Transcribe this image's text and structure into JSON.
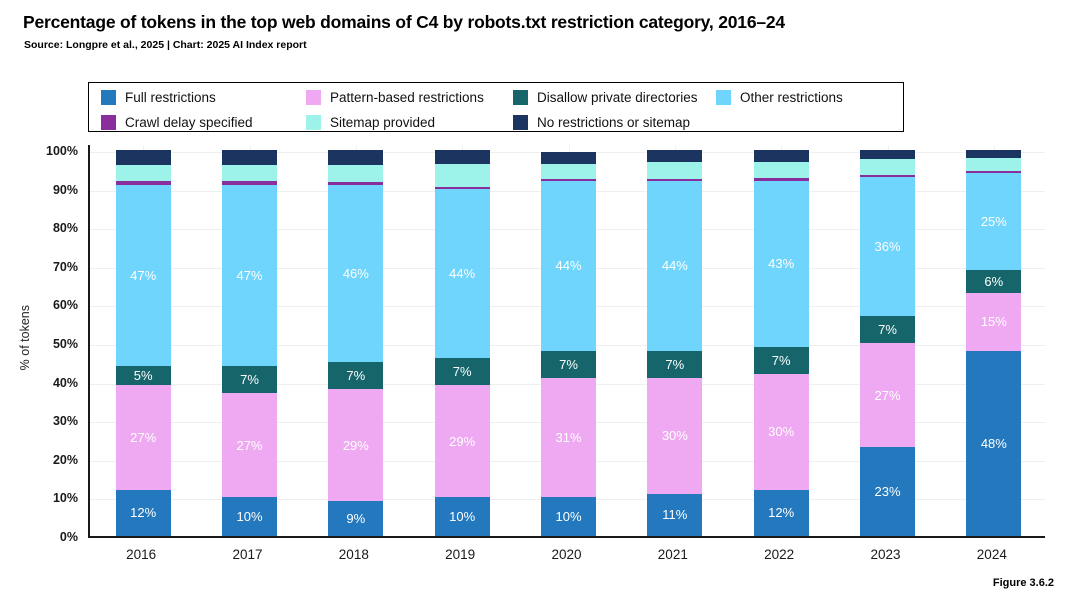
{
  "title": "Percentage of tokens in the top web domains of C4 by robots.txt restriction category, 2016–24",
  "source_line": "Source: Longpre et al., 2025 | Chart: 2025 AI Index report",
  "figure_label": "Figure 3.6.2",
  "legend": {
    "items": [
      {
        "label": "Full restrictions",
        "color": "#2378BE"
      },
      {
        "label": "Pattern-based restrictions",
        "color": "#EFA9F2"
      },
      {
        "label": "Disallow private directories",
        "color": "#16656A"
      },
      {
        "label": "Other restrictions",
        "color": "#6FD5FC"
      },
      {
        "label": "Crawl delay specified",
        "color": "#8A2E9E"
      },
      {
        "label": "Sitemap provided",
        "color": "#9DF2E9"
      },
      {
        "label": "No restrictions or sitemap",
        "color": "#1C3460"
      }
    ]
  },
  "y_axis": {
    "label": "% of tokens",
    "tick_values": [
      0,
      10,
      20,
      30,
      40,
      50,
      60,
      70,
      80,
      90,
      100
    ]
  },
  "chart_data": {
    "type": "bar",
    "subtype": "stacked-percent-column",
    "title": "Percentage of tokens in the top web domains of C4 by robots.txt restriction category, 2016–24",
    "categories": [
      "2016",
      "2017",
      "2018",
      "2019",
      "2020",
      "2021",
      "2022",
      "2023",
      "2024"
    ],
    "xlabel": "",
    "ylabel": "% of tokens",
    "ylim": [
      0,
      100
    ],
    "grid": true,
    "legend_position": "top",
    "stack_order": "bottom-to-top",
    "series": [
      {
        "name": "Full restrictions",
        "color": "#2378BE",
        "labeled": true,
        "values": [
          12,
          10,
          9,
          10,
          10,
          11,
          12,
          23,
          48
        ]
      },
      {
        "name": "Pattern-based restrictions",
        "color": "#EFA9F2",
        "labeled": true,
        "values": [
          27,
          27,
          29,
          29,
          31,
          30,
          30,
          27,
          15
        ]
      },
      {
        "name": "Disallow private directories",
        "color": "#16656A",
        "labeled": true,
        "values": [
          5,
          7,
          7,
          7,
          7,
          7,
          7,
          7,
          6
        ]
      },
      {
        "name": "Other restrictions",
        "color": "#6FD5FC",
        "labeled": true,
        "values": [
          47,
          47,
          46,
          44,
          44,
          44,
          43,
          36,
          25
        ]
      },
      {
        "name": "Crawl delay specified",
        "color": "#8A2E9E",
        "labeled": false,
        "values": [
          1,
          1,
          0.6,
          0.5,
          0.5,
          0.6,
          0.8,
          0.6,
          0.5
        ]
      },
      {
        "name": "Sitemap provided",
        "color": "#9DF2E9",
        "labeled": false,
        "values": [
          4,
          4,
          4.4,
          6,
          4,
          4.4,
          4.2,
          4,
          3.5
        ]
      },
      {
        "name": "No restrictions or sitemap",
        "color": "#1C3460",
        "labeled": false,
        "values": [
          4,
          4,
          4,
          3.5,
          3,
          3,
          3,
          2.4,
          2
        ]
      }
    ]
  }
}
